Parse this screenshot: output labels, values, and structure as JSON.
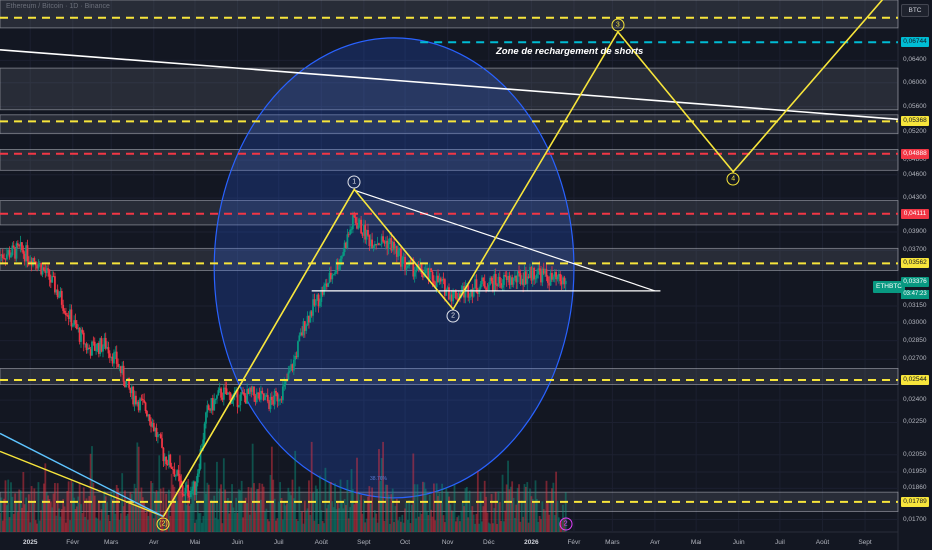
{
  "header": {
    "symbol_title": "Ethereum / Bitcoin · 1D · Binance",
    "currency": "BTC"
  },
  "annotations": {
    "zone_text": "Zone de rechargement de shorts",
    "ellipse_note": "38.76%"
  },
  "waves": [
    {
      "label": "1",
      "date": "2025-08-25",
      "price": 0.0441,
      "style": "white"
    },
    {
      "label": "2",
      "date": "2025-11-05",
      "price": 0.0312,
      "style": "white"
    },
    {
      "label": "3",
      "date": "2026-03-05",
      "price": 0.0695,
      "style": "yellow"
    },
    {
      "label": "4",
      "date": "2026-05-28",
      "price": 0.0464,
      "style": "yellow"
    },
    {
      "label": "2",
      "date": "2026-01-26",
      "price": 0.01715,
      "style": "magenta"
    },
    {
      "label": "(2)",
      "date": "2025-04-08",
      "price": 0.01715,
      "style": "yellow"
    }
  ],
  "price_tags": [
    {
      "value": "0,06744",
      "price": 0.06744,
      "color": "cyan"
    },
    {
      "value": "0,05368",
      "price": 0.05368,
      "color": "yellow"
    },
    {
      "value": "0,04888",
      "price": 0.04888,
      "color": "red"
    },
    {
      "value": "0,04111",
      "price": 0.04111,
      "color": "red"
    },
    {
      "value": "0,03562",
      "price": 0.03562,
      "color": "yellow"
    },
    {
      "value": "0,03376",
      "price": 0.03376,
      "color": "green"
    },
    {
      "value": "0,02544",
      "price": 0.02544,
      "color": "yellow"
    },
    {
      "value": "0,01789",
      "price": 0.01789,
      "color": "yellow"
    }
  ],
  "symbol_label": "ETHBTC",
  "countdown": "03:47:23",
  "colors": {
    "background": "#131722",
    "up": "#089981",
    "down": "#f23645",
    "projection": "#f7e53b",
    "dashed_yellow": "#f7e53b",
    "dashed_red": "#f23645",
    "dashed_cyan": "#00bcd4",
    "ellipse": "#2962ff",
    "trendline": "#ffffff"
  },
  "chart_data": {
    "type": "candlestick",
    "title": "",
    "symbol": "ETHBTC",
    "y_scale": "log",
    "ylim": [
      0.0164,
      0.0762
    ],
    "xlim": [
      "2024-12-10",
      "2026-09-25"
    ],
    "y_ticks": [
      "0,06400",
      "0,06000",
      "0,05600",
      "0,05200",
      "0,04800",
      "0,04600",
      "0,04300",
      "0,03900",
      "0,03700",
      "0,03150",
      "0,03000",
      "0,02850",
      "0,02700",
      "0,02400",
      "0,02250",
      "0,02050",
      "0,01950",
      "0,01860",
      "0,01700"
    ],
    "x_ticks": [
      {
        "label": "2025",
        "date": "2025-01-01"
      },
      {
        "label": "Févr",
        "date": "2025-02-01"
      },
      {
        "label": "Mars",
        "date": "2025-03-01"
      },
      {
        "label": "Avr",
        "date": "2025-04-01"
      },
      {
        "label": "Mai",
        "date": "2025-05-01"
      },
      {
        "label": "Juin",
        "date": "2025-06-01"
      },
      {
        "label": "Juil",
        "date": "2025-07-01"
      },
      {
        "label": "Août",
        "date": "2025-08-01"
      },
      {
        "label": "Sept",
        "date": "2025-09-01"
      },
      {
        "label": "Oct",
        "date": "2025-10-01"
      },
      {
        "label": "Nov",
        "date": "2025-11-01"
      },
      {
        "label": "Déc",
        "date": "2025-12-01"
      },
      {
        "label": "2026",
        "date": "2026-01-01"
      },
      {
        "label": "Févr",
        "date": "2026-02-01"
      },
      {
        "label": "Mars",
        "date": "2026-03-01"
      },
      {
        "label": "Avr",
        "date": "2026-04-01"
      },
      {
        "label": "Mai",
        "date": "2026-05-01"
      },
      {
        "label": "Juin",
        "date": "2026-06-01"
      },
      {
        "label": "Juil",
        "date": "2026-07-01"
      },
      {
        "label": "Août",
        "date": "2026-08-01"
      },
      {
        "label": "Sept",
        "date": "2026-09-01"
      }
    ],
    "price_path": [
      [
        "2024-12-10",
        0.0365
      ],
      [
        "2024-12-25",
        0.037
      ],
      [
        "2025-01-05",
        0.036
      ],
      [
        "2025-01-18",
        0.0335
      ],
      [
        "2025-02-01",
        0.03
      ],
      [
        "2025-02-12",
        0.0278
      ],
      [
        "2025-02-25",
        0.0282
      ],
      [
        "2025-03-05",
        0.0268
      ],
      [
        "2025-03-15",
        0.0245
      ],
      [
        "2025-03-28",
        0.0232
      ],
      [
        "2025-04-08",
        0.0205
      ],
      [
        "2025-04-15",
        0.0198
      ],
      [
        "2025-04-22",
        0.0184
      ],
      [
        "2025-05-01",
        0.0186
      ],
      [
        "2025-05-10",
        0.0232
      ],
      [
        "2025-05-20",
        0.0245
      ],
      [
        "2025-06-01",
        0.0241
      ],
      [
        "2025-06-12",
        0.0244
      ],
      [
        "2025-06-25",
        0.0238
      ],
      [
        "2025-07-05",
        0.0248
      ],
      [
        "2025-07-12",
        0.0268
      ],
      [
        "2025-07-20",
        0.03
      ],
      [
        "2025-07-28",
        0.0318
      ],
      [
        "2025-08-05",
        0.0335
      ],
      [
        "2025-08-15",
        0.0362
      ],
      [
        "2025-08-25",
        0.0405
      ],
      [
        "2025-09-05",
        0.0382
      ],
      [
        "2025-09-20",
        0.0378
      ],
      [
        "2025-10-01",
        0.0355
      ],
      [
        "2025-10-12",
        0.0348
      ],
      [
        "2025-10-25",
        0.0338
      ],
      [
        "2025-11-05",
        0.0325
      ],
      [
        "2025-11-15",
        0.033
      ],
      [
        "2025-11-28",
        0.0336
      ],
      [
        "2025-12-10",
        0.0338
      ],
      [
        "2025-12-22",
        0.034
      ],
      [
        "2026-01-05",
        0.0348
      ],
      [
        "2026-01-15",
        0.034
      ],
      [
        "2026-01-26",
        0.0337
      ]
    ],
    "volume_range": [
      0,
      1
    ],
    "drawings": {
      "projection_path": [
        [
          "2025-04-08",
          0.01715
        ],
        [
          "2025-08-25",
          0.0441
        ],
        [
          "2025-11-05",
          0.0312
        ],
        [
          "2026-03-05",
          0.0695
        ],
        [
          "2026-05-28",
          0.0464
        ],
        [
          "2026-09-20",
          0.0785
        ]
      ],
      "white_zigzag": [
        [
          "2025-04-08",
          0.01715
        ],
        [
          "2025-08-25",
          0.0441
        ],
        [
          "2025-11-05",
          0.0312
        ]
      ],
      "upper_trendline": [
        [
          "2024-12-10",
          0.066
        ],
        [
          "2026-09-25",
          0.054
        ]
      ],
      "triangle_top": [
        [
          "2025-08-25",
          0.044
        ],
        [
          "2026-04-01",
          0.0329
        ]
      ],
      "triangle_base": [
        [
          "2025-07-25",
          0.0329
        ],
        [
          "2026-04-05",
          0.0329
        ]
      ],
      "left_lines": [
        {
          "from": [
            "2024-12-10",
            0.0207
          ],
          "to": [
            "2025-04-08",
            0.01715
          ],
          "color": "#f7e53b"
        },
        {
          "from": [
            "2024-12-10",
            0.0218
          ],
          "to": [
            "2025-04-08",
            0.01715
          ],
          "color": "#5ec4ff"
        }
      ],
      "dashed_levels": [
        {
          "price": 0.0724,
          "color": "yellow"
        },
        {
          "price": 0.06744,
          "color": "cyan",
          "from": "2025-10-12"
        },
        {
          "price": 0.05368,
          "color": "yellow"
        },
        {
          "price": 0.04888,
          "color": "red"
        },
        {
          "price": 0.04111,
          "color": "red"
        },
        {
          "price": 0.03562,
          "color": "yellow"
        },
        {
          "price": 0.02544,
          "color": "yellow"
        },
        {
          "price": 0.01789,
          "color": "yellow"
        }
      ],
      "zones": [
        {
          "top": 0.0762,
          "bottom": 0.0703
        },
        {
          "top": 0.0626,
          "bottom": 0.0555
        },
        {
          "top": 0.0547,
          "bottom": 0.0518
        },
        {
          "top": 0.0495,
          "bottom": 0.0466
        },
        {
          "top": 0.0427,
          "bottom": 0.0398
        },
        {
          "top": 0.0372,
          "bottom": 0.0349
        },
        {
          "top": 0.0263,
          "bottom": 0.0251
        },
        {
          "top": 0.0184,
          "bottom": 0.0174
        }
      ],
      "ellipse": {
        "start": "2025-05-15",
        "end": "2026-02-01",
        "top": 0.0683,
        "bottom": 0.0181
      }
    }
  }
}
